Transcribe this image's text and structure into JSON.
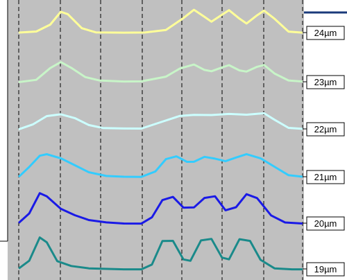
{
  "chart_data": {
    "type": "line",
    "title": "",
    "xlabel": "",
    "ylabel": "",
    "grid": false,
    "xlim": [
      0,
      10
    ],
    "background_color": "#c0c0c0",
    "vertical_dashed_lines_x": [
      0,
      1,
      2,
      3,
      4,
      5,
      6,
      7
    ],
    "trace_labels_position": "right of each trace",
    "series": [
      {
        "name": "24µm",
        "color": "#ffff99",
        "points": [
          [
            0,
            0
          ],
          [
            0.5,
            0.05
          ],
          [
            0.9,
            0.35
          ],
          [
            1.2,
            0.9
          ],
          [
            1.4,
            0.8
          ],
          [
            1.8,
            0.2
          ],
          [
            2.2,
            0.02
          ],
          [
            3,
            0
          ],
          [
            3.6,
            0
          ],
          [
            4.2,
            0.1
          ],
          [
            4.7,
            0.6
          ],
          [
            5.0,
            0.95
          ],
          [
            5.3,
            0.65
          ],
          [
            5.5,
            0.45
          ],
          [
            5.8,
            0.75
          ],
          [
            6.0,
            0.95
          ],
          [
            6.3,
            0.6
          ],
          [
            6.5,
            0.4
          ],
          [
            6.8,
            0.75
          ],
          [
            7.0,
            0.95
          ],
          [
            7.3,
            0.6
          ],
          [
            7.7,
            0.05
          ],
          [
            8.1,
            0
          ]
        ]
      },
      {
        "name": "23µm",
        "color": "#c8f5c8",
        "points": [
          [
            0,
            0
          ],
          [
            0.5,
            0.1
          ],
          [
            0.9,
            0.6
          ],
          [
            1.2,
            0.85
          ],
          [
            1.5,
            0.6
          ],
          [
            1.9,
            0.2
          ],
          [
            2.3,
            0.05
          ],
          [
            3,
            0
          ],
          [
            3.5,
            0
          ],
          [
            4.2,
            0.2
          ],
          [
            4.6,
            0.55
          ],
          [
            5.0,
            0.72
          ],
          [
            5.3,
            0.5
          ],
          [
            5.5,
            0.45
          ],
          [
            5.8,
            0.62
          ],
          [
            6.0,
            0.72
          ],
          [
            6.3,
            0.5
          ],
          [
            6.5,
            0.45
          ],
          [
            6.8,
            0.65
          ],
          [
            7.0,
            0.72
          ],
          [
            7.3,
            0.35
          ],
          [
            7.7,
            0.05
          ],
          [
            8.1,
            0
          ]
        ]
      },
      {
        "name": "22µm",
        "color": "#ccffff",
        "points": [
          [
            0,
            0
          ],
          [
            0.4,
            0.2
          ],
          [
            0.8,
            0.55
          ],
          [
            1.2,
            0.62
          ],
          [
            1.6,
            0.45
          ],
          [
            2.0,
            0.15
          ],
          [
            2.4,
            0.02
          ],
          [
            3,
            0
          ],
          [
            3.5,
            0
          ],
          [
            4.1,
            0.3
          ],
          [
            4.6,
            0.55
          ],
          [
            5.0,
            0.6
          ],
          [
            5.5,
            0.6
          ],
          [
            6.0,
            0.65
          ],
          [
            6.5,
            0.62
          ],
          [
            7.0,
            0.68
          ],
          [
            7.3,
            0.4
          ],
          [
            7.7,
            0.05
          ],
          [
            8.1,
            0
          ]
        ]
      },
      {
        "name": "21µm",
        "color": "#33ccff",
        "points": [
          [
            0,
            0
          ],
          [
            0.3,
            0.35
          ],
          [
            0.6,
            0.75
          ],
          [
            0.8,
            0.8
          ],
          [
            1.2,
            0.65
          ],
          [
            1.6,
            0.4
          ],
          [
            2.0,
            0.15
          ],
          [
            2.5,
            0.02
          ],
          [
            3,
            0
          ],
          [
            3.5,
            0
          ],
          [
            3.9,
            0.2
          ],
          [
            4.2,
            0.65
          ],
          [
            4.5,
            0.75
          ],
          [
            4.8,
            0.55
          ],
          [
            5.0,
            0.55
          ],
          [
            5.3,
            0.72
          ],
          [
            5.6,
            0.65
          ],
          [
            5.9,
            0.55
          ],
          [
            6.2,
            0.68
          ],
          [
            6.5,
            0.8
          ],
          [
            6.9,
            0.65
          ],
          [
            7.3,
            0.35
          ],
          [
            7.7,
            0.05
          ],
          [
            8.1,
            0
          ]
        ]
      },
      {
        "name": "20µm",
        "color": "#1a1ae6",
        "points": [
          [
            0,
            0
          ],
          [
            0.3,
            0.3
          ],
          [
            0.6,
            0.95
          ],
          [
            0.8,
            0.85
          ],
          [
            1.2,
            0.45
          ],
          [
            1.6,
            0.25
          ],
          [
            2.0,
            0.1
          ],
          [
            2.5,
            0.03
          ],
          [
            3,
            0
          ],
          [
            3.5,
            0
          ],
          [
            3.8,
            0.2
          ],
          [
            4.1,
            0.75
          ],
          [
            4.4,
            0.85
          ],
          [
            4.7,
            0.5
          ],
          [
            5.0,
            0.5
          ],
          [
            5.3,
            0.8
          ],
          [
            5.6,
            0.85
          ],
          [
            5.9,
            0.4
          ],
          [
            6.2,
            0.5
          ],
          [
            6.5,
            0.92
          ],
          [
            6.8,
            0.8
          ],
          [
            7.2,
            0.25
          ],
          [
            7.6,
            0.03
          ],
          [
            8.1,
            0
          ]
        ]
      },
      {
        "name": "19µm",
        "color": "#1a8a8a",
        "points": [
          [
            0,
            0
          ],
          [
            0.3,
            0.25
          ],
          [
            0.6,
            1.0
          ],
          [
            0.8,
            0.85
          ],
          [
            1.1,
            0.25
          ],
          [
            1.5,
            0.1
          ],
          [
            2.0,
            0.03
          ],
          [
            3,
            0
          ],
          [
            3.5,
            0
          ],
          [
            3.8,
            0.15
          ],
          [
            4.1,
            0.9
          ],
          [
            4.4,
            0.9
          ],
          [
            4.7,
            0.3
          ],
          [
            4.9,
            0.25
          ],
          [
            5.2,
            0.9
          ],
          [
            5.5,
            0.95
          ],
          [
            5.8,
            0.35
          ],
          [
            6.0,
            0.3
          ],
          [
            6.3,
            0.95
          ],
          [
            6.6,
            0.9
          ],
          [
            6.9,
            0.3
          ],
          [
            7.3,
            0.03
          ],
          [
            7.8,
            0
          ],
          [
            8.1,
            0
          ]
        ]
      }
    ]
  }
}
